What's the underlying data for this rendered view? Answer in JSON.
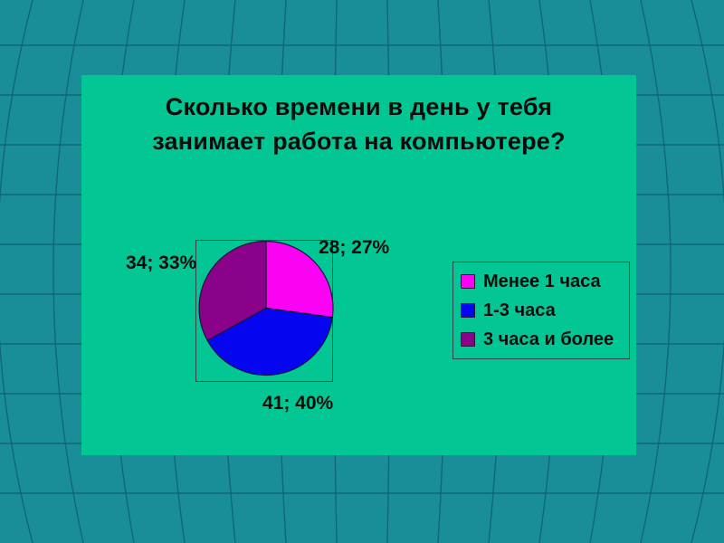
{
  "slide": {
    "title_lines": [
      "Сколько времени в день у тебя",
      "занимает работа на компьютере?"
    ]
  },
  "chart_data": {
    "type": "pie",
    "title": "Сколько времени в день у тебя занимает работа на компьютере?",
    "labels": [
      "Менее 1 часа",
      "1-3 часа",
      "3 часа и более"
    ],
    "values": [
      28,
      41,
      34
    ],
    "percents": [
      27,
      40,
      33
    ],
    "point_labels": [
      "28; 27%",
      "41; 40%",
      "34; 33%"
    ],
    "start_angle_deg": 0,
    "direction": "clockwise",
    "legend_position": "right",
    "grid": false
  },
  "colors": {
    "background": "#1A8E98",
    "grid_line": "#11606F",
    "slide_background": "#02C795",
    "text": "#0B0B0B",
    "slices": [
      "#FB02F5",
      "#0505F0",
      "#8A028A"
    ],
    "pie_outline": "#15153A",
    "box_border": "#32444A"
  }
}
